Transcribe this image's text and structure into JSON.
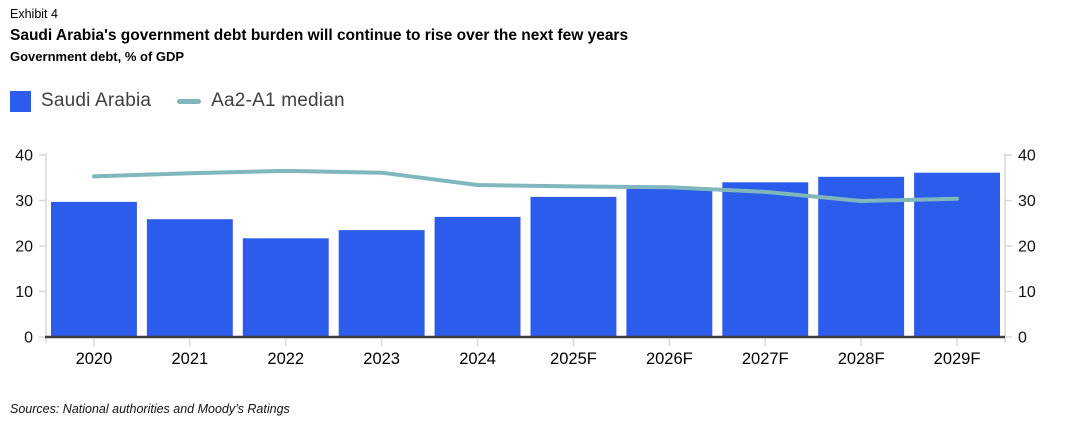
{
  "header": {
    "exhibit": "Exhibit 4",
    "title": "Saudi Arabia's government debt burden will continue to rise over the next few years",
    "subtitle": "Government debt, % of GDP"
  },
  "legend": {
    "items": [
      {
        "label": "Saudi Arabia",
        "type": "bar",
        "color": "#2B5CEC"
      },
      {
        "label": "Aa2-A1 median",
        "type": "line",
        "color": "#7FB7BD"
      }
    ]
  },
  "footer": {
    "sources": "Sources: National authorities and Moody’s Ratings"
  },
  "chart_data": {
    "type": "bar",
    "title": "Saudi Arabia's government debt burden will continue to rise over the next few years",
    "subtitle": "Government debt, % of GDP",
    "categories": [
      "2020",
      "2021",
      "2022",
      "2023",
      "2024",
      "2025F",
      "2026F",
      "2027F",
      "2028F",
      "2029F"
    ],
    "series": [
      {
        "name": "Saudi Arabia",
        "type": "bar",
        "color": "#2B5CEC",
        "values": [
          29.7,
          25.9,
          21.7,
          23.5,
          26.4,
          30.8,
          32.6,
          34.0,
          35.2,
          36.1
        ]
      },
      {
        "name": "Aa2-A1 median",
        "type": "line",
        "color": "#7FB7BD",
        "values": [
          35.3,
          36.0,
          36.5,
          36.1,
          33.4,
          33.1,
          32.9,
          31.9,
          29.9,
          30.4
        ]
      }
    ],
    "xlabel": "",
    "ylabel": "Government debt, % of GDP",
    "ylim": [
      0,
      40
    ],
    "yticks": [
      0,
      10,
      20,
      30,
      40
    ],
    "grid": false,
    "dual_axis": true,
    "legend_position": "top-left",
    "axis_colors": {
      "baseline": "#3f3f3f",
      "tick": "#d8d8d8",
      "tick_label": "#111111"
    }
  }
}
